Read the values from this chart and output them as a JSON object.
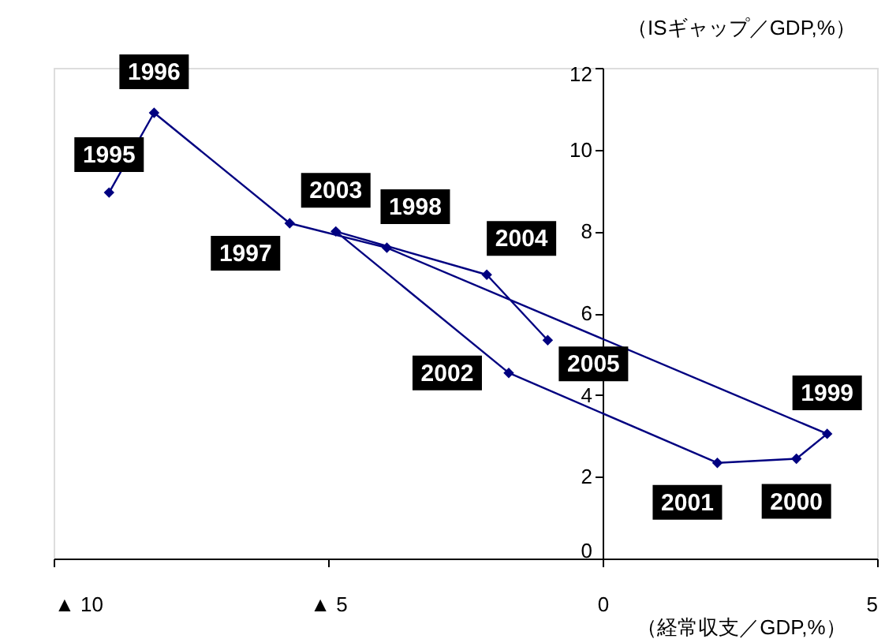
{
  "chart_data": {
    "type": "line",
    "x": [
      -8.99,
      -8.17,
      -5.7,
      -3.93,
      4.09,
      3.53,
      2.09,
      -1.71,
      -4.86,
      -2.11,
      -1.0
    ],
    "series": [
      {
        "color": "#000080",
        "values": [
          8.95,
          10.9,
          8.2,
          7.6,
          3.05,
          2.44,
          2.34,
          4.54,
          8.0,
          6.94,
          5.34
        ]
      }
    ],
    "xlim": [
      -10,
      5
    ],
    "ylim": [
      0,
      12
    ],
    "xticks": [
      {
        "value": -10,
        "label": "▲ 10"
      },
      {
        "value": -5,
        "label": "▲ 5"
      },
      0,
      5
    ],
    "yticks": [
      0,
      2,
      4,
      6,
      8,
      10,
      12
    ],
    "xlabel": "（経常収支／GDP,%）",
    "ylabel": "（ISギャップ／GDP,%）",
    "marker": "diamond",
    "grid": false,
    "annotations": [
      {
        "text": "1995",
        "x": -8.99,
        "y": 8.95
      },
      {
        "text": "1996",
        "x": -8.17,
        "y": 10.9
      },
      {
        "text": "1997",
        "x": -5.7,
        "y": 8.2
      },
      {
        "text": "1998",
        "x": -3.93,
        "y": 7.6
      },
      {
        "text": "1999",
        "x": 4.09,
        "y": 3.05
      },
      {
        "text": "2000",
        "x": 3.53,
        "y": 2.44
      },
      {
        "text": "2001",
        "x": 2.09,
        "y": 2.34
      },
      {
        "text": "2002",
        "x": -1.71,
        "y": 4.54
      },
      {
        "text": "2003",
        "x": -4.86,
        "y": 8.0
      },
      {
        "text": "2004",
        "x": -2.11,
        "y": 6.94
      },
      {
        "text": "2005",
        "x": -1.0,
        "y": 5.34
      }
    ]
  }
}
